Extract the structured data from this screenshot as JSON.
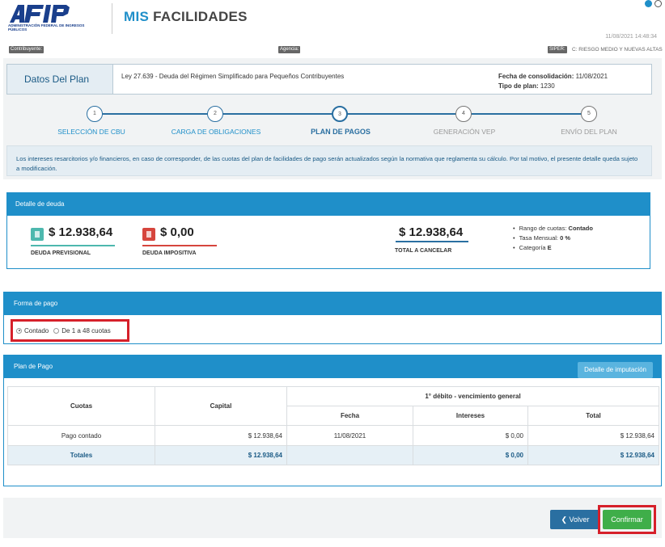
{
  "header": {
    "logo_text": "AFIP",
    "logo_subtitle": "ADMINISTRACIÓN FEDERAL DE INGRESOS PÚBLICOS",
    "title_part1": "MIS",
    "title_part2": "FACILIDADES",
    "timestamp": "11/08/2021 14:48:34"
  },
  "topbar": {
    "contribuyente_label": "Contribuyente:",
    "agencia_label": "Agencia:",
    "siper_label": "SIPER:",
    "siper_value": "C: RIESGO MEDIO Y NUEVAS ALTAS"
  },
  "plan": {
    "title": "Datos Del Plan",
    "ley": "Ley 27.639 - Deuda del Régimen Simplificado para Pequeños Contribuyentes",
    "fecha_label": "Fecha de consolidación:",
    "fecha_value": "11/08/2021",
    "tipo_label": "Tipo de plan:",
    "tipo_value": "1230"
  },
  "steps": [
    {
      "num": "1",
      "label": "SELECCIÓN DE CBU"
    },
    {
      "num": "2",
      "label": "CARGA DE OBLIGACIONES"
    },
    {
      "num": "3",
      "label": "PLAN DE PAGOS"
    },
    {
      "num": "4",
      "label": "GENERACIÓN VEP"
    },
    {
      "num": "5",
      "label": "ENVÍO DEL PLAN"
    }
  ],
  "notice": "Los intereses resarcitorios y/o financieros, en caso de corresponder, de las cuotas del plan de facilidades de pago serán actualizados según la normativa que reglamenta su cálculo. Por tal motivo, el presente detalle queda sujeto a modificación.",
  "detalle": {
    "title": "Detalle de deuda",
    "previsional_value": "$ 12.938,64",
    "previsional_label": "DEUDA PREVISIONAL",
    "impositiva_value": "$ 0,00",
    "impositiva_label": "DEUDA IMPOSITIVA",
    "total_value": "$ 12.938,64",
    "total_label": "TOTAL A CANCELAR",
    "rango_label": "Rango de cuotas:",
    "rango_value": "Contado",
    "tasa_label": "Tasa Mensual:",
    "tasa_value": "0 %",
    "categoria_label": "Categoría",
    "categoria_value": "E",
    "colors": {
      "previsional": "#4db8ae",
      "impositiva": "#d6453d"
    }
  },
  "forma": {
    "title": "Forma de pago",
    "option1": "Contado",
    "option2": "De 1 a 48 cuotas",
    "selected": "Contado"
  },
  "plan_pago": {
    "title": "Plan de Pago",
    "imputacion_button": "Detalle de imputación",
    "headers": {
      "cuotas": "Cuotas",
      "capital": "Capital",
      "group": "1° débito - vencimiento general",
      "fecha": "Fecha",
      "intereses": "Intereses",
      "total": "Total"
    },
    "row": {
      "cuotas": "Pago contado",
      "capital": "$ 12.938,64",
      "fecha": "11/08/2021",
      "intereses": "$ 0,00",
      "total": "$ 12.938,64"
    },
    "totals": {
      "label": "Totales",
      "capital": "$ 12.938,64",
      "intereses": "$ 0,00",
      "total": "$ 12.938,64"
    }
  },
  "buttons": {
    "volver": "Volver",
    "confirmar": "Confirmar"
  }
}
